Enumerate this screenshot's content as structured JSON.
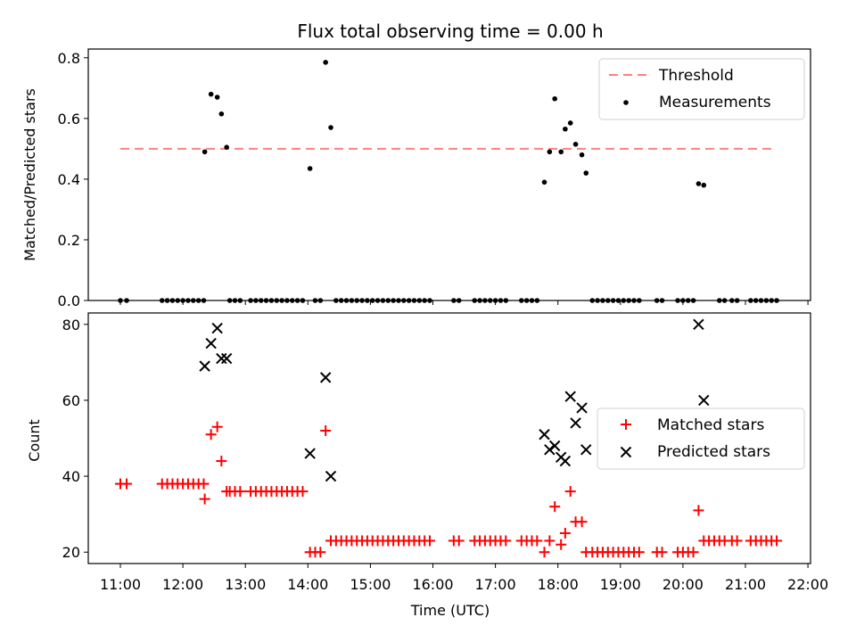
{
  "chart_data": [
    {
      "type": "scatter",
      "title": "Flux total observing time = 0.00 h",
      "ylabel": "Matched/Predicted stars",
      "xlabel": "",
      "xlim": [
        "10:50",
        "22:00"
      ],
      "ylim": [
        0,
        0.82
      ],
      "yticks": [
        "0.0",
        "0.2",
        "0.4",
        "0.6",
        "0.8"
      ],
      "legend_position": "top-right",
      "threshold": {
        "name": "Threshold",
        "value": 0.5,
        "x_range": [
          "11:00",
          "21:30"
        ],
        "color": "#ff7f7f"
      },
      "series": [
        {
          "name": "Measurements",
          "color": "#000000",
          "points": [
            [
              "11:00",
              0
            ],
            [
              "11:06",
              0
            ],
            [
              "11:40",
              0
            ],
            [
              "11:45",
              0
            ],
            [
              "11:50",
              0
            ],
            [
              "11:55",
              0
            ],
            [
              "12:00",
              0
            ],
            [
              "12:05",
              0
            ],
            [
              "12:10",
              0
            ],
            [
              "12:15",
              0
            ],
            [
              "12:20",
              0
            ],
            [
              "12:21",
              0.49
            ],
            [
              "12:27",
              0.68
            ],
            [
              "12:33",
              0.67
            ],
            [
              "12:37",
              0.615
            ],
            [
              "12:42",
              0.505
            ],
            [
              "12:45",
              0
            ],
            [
              "12:50",
              0
            ],
            [
              "12:55",
              0
            ],
            [
              "13:05",
              0
            ],
            [
              "13:10",
              0
            ],
            [
              "13:15",
              0
            ],
            [
              "13:20",
              0
            ],
            [
              "13:25",
              0
            ],
            [
              "13:30",
              0
            ],
            [
              "13:35",
              0
            ],
            [
              "13:40",
              0
            ],
            [
              "13:45",
              0
            ],
            [
              "13:50",
              0
            ],
            [
              "13:55",
              0
            ],
            [
              "14:02",
              0.435
            ],
            [
              "14:07",
              0
            ],
            [
              "14:12",
              0
            ],
            [
              "14:17",
              0.785
            ],
            [
              "14:22",
              0.57
            ],
            [
              "14:27",
              0
            ],
            [
              "14:32",
              0
            ],
            [
              "14:37",
              0
            ],
            [
              "14:42",
              0
            ],
            [
              "14:47",
              0
            ],
            [
              "14:52",
              0
            ],
            [
              "14:57",
              0
            ],
            [
              "15:02",
              0
            ],
            [
              "15:07",
              0
            ],
            [
              "15:12",
              0
            ],
            [
              "15:17",
              0
            ],
            [
              "15:22",
              0
            ],
            [
              "15:27",
              0
            ],
            [
              "15:32",
              0
            ],
            [
              "15:37",
              0
            ],
            [
              "15:42",
              0
            ],
            [
              "15:47",
              0
            ],
            [
              "15:52",
              0
            ],
            [
              "15:57",
              0
            ],
            [
              "16:20",
              0
            ],
            [
              "16:25",
              0
            ],
            [
              "16:40",
              0
            ],
            [
              "16:45",
              0
            ],
            [
              "16:50",
              0
            ],
            [
              "16:55",
              0
            ],
            [
              "17:00",
              0
            ],
            [
              "17:05",
              0
            ],
            [
              "17:10",
              0
            ],
            [
              "17:25",
              0
            ],
            [
              "17:30",
              0
            ],
            [
              "17:35",
              0
            ],
            [
              "17:40",
              0
            ],
            [
              "17:47",
              0.39
            ],
            [
              "17:52",
              0.49
            ],
            [
              "17:57",
              0.665
            ],
            [
              "18:03",
              0.49
            ],
            [
              "18:07",
              0.565
            ],
            [
              "18:12",
              0.585
            ],
            [
              "18:17",
              0.515
            ],
            [
              "18:23",
              0.48
            ],
            [
              "18:27",
              0.42
            ],
            [
              "18:33",
              0
            ],
            [
              "18:38",
              0
            ],
            [
              "18:43",
              0
            ],
            [
              "18:48",
              0
            ],
            [
              "18:53",
              0
            ],
            [
              "18:58",
              0
            ],
            [
              "19:03",
              0
            ],
            [
              "19:08",
              0
            ],
            [
              "19:13",
              0
            ],
            [
              "19:18",
              0
            ],
            [
              "19:35",
              0
            ],
            [
              "19:40",
              0
            ],
            [
              "19:55",
              0
            ],
            [
              "20:00",
              0
            ],
            [
              "20:05",
              0
            ],
            [
              "20:10",
              0
            ],
            [
              "20:15",
              0.385
            ],
            [
              "20:20",
              0.38
            ],
            [
              "20:35",
              0
            ],
            [
              "20:40",
              0
            ],
            [
              "20:47",
              0
            ],
            [
              "20:52",
              0
            ],
            [
              "21:05",
              0
            ],
            [
              "21:10",
              0
            ],
            [
              "21:15",
              0
            ],
            [
              "21:20",
              0
            ],
            [
              "21:25",
              0
            ],
            [
              "21:30",
              0
            ]
          ]
        }
      ]
    },
    {
      "type": "scatter",
      "xlabel": "Time (UTC)",
      "ylabel": "Count",
      "xticks": [
        "11:00",
        "12:00",
        "13:00",
        "14:00",
        "15:00",
        "16:00",
        "17:00",
        "18:00",
        "19:00",
        "20:00",
        "21:00",
        "22:00"
      ],
      "yticks": [
        "20",
        "40",
        "60",
        "80"
      ],
      "xlim": [
        "10:50",
        "22:00"
      ],
      "ylim": [
        17,
        83
      ],
      "legend_position": "center-right",
      "series": [
        {
          "name": "Matched stars",
          "marker": "plus",
          "color": "#ff0000",
          "points": [
            [
              "11:00",
              38
            ],
            [
              "11:06",
              38
            ],
            [
              "11:40",
              38
            ],
            [
              "11:45",
              38
            ],
            [
              "11:50",
              38
            ],
            [
              "11:55",
              38
            ],
            [
              "12:00",
              38
            ],
            [
              "12:05",
              38
            ],
            [
              "12:10",
              38
            ],
            [
              "12:15",
              38
            ],
            [
              "12:20",
              38
            ],
            [
              "12:21",
              34
            ],
            [
              "12:27",
              51
            ],
            [
              "12:33",
              53
            ],
            [
              "12:37",
              44
            ],
            [
              "12:42",
              36
            ],
            [
              "12:45",
              36
            ],
            [
              "12:50",
              36
            ],
            [
              "12:55",
              36
            ],
            [
              "13:05",
              36
            ],
            [
              "13:10",
              36
            ],
            [
              "13:15",
              36
            ],
            [
              "13:20",
              36
            ],
            [
              "13:25",
              36
            ],
            [
              "13:30",
              36
            ],
            [
              "13:35",
              36
            ],
            [
              "13:40",
              36
            ],
            [
              "13:45",
              36
            ],
            [
              "13:50",
              36
            ],
            [
              "13:55",
              36
            ],
            [
              "14:02",
              20
            ],
            [
              "14:07",
              20
            ],
            [
              "14:12",
              20
            ],
            [
              "14:17",
              52
            ],
            [
              "14:22",
              23
            ],
            [
              "14:27",
              23
            ],
            [
              "14:32",
              23
            ],
            [
              "14:37",
              23
            ],
            [
              "14:42",
              23
            ],
            [
              "14:47",
              23
            ],
            [
              "14:52",
              23
            ],
            [
              "14:57",
              23
            ],
            [
              "15:02",
              23
            ],
            [
              "15:07",
              23
            ],
            [
              "15:12",
              23
            ],
            [
              "15:17",
              23
            ],
            [
              "15:22",
              23
            ],
            [
              "15:27",
              23
            ],
            [
              "15:32",
              23
            ],
            [
              "15:37",
              23
            ],
            [
              "15:42",
              23
            ],
            [
              "15:47",
              23
            ],
            [
              "15:52",
              23
            ],
            [
              "15:57",
              23
            ],
            [
              "16:20",
              23
            ],
            [
              "16:25",
              23
            ],
            [
              "16:40",
              23
            ],
            [
              "16:45",
              23
            ],
            [
              "16:50",
              23
            ],
            [
              "16:55",
              23
            ],
            [
              "17:00",
              23
            ],
            [
              "17:05",
              23
            ],
            [
              "17:10",
              23
            ],
            [
              "17:25",
              23
            ],
            [
              "17:30",
              23
            ],
            [
              "17:35",
              23
            ],
            [
              "17:40",
              23
            ],
            [
              "17:47",
              20
            ],
            [
              "17:52",
              23
            ],
            [
              "17:57",
              32
            ],
            [
              "18:03",
              22
            ],
            [
              "18:07",
              25
            ],
            [
              "18:12",
              36
            ],
            [
              "18:17",
              28
            ],
            [
              "18:23",
              28
            ],
            [
              "18:27",
              20
            ],
            [
              "18:33",
              20
            ],
            [
              "18:38",
              20
            ],
            [
              "18:43",
              20
            ],
            [
              "18:48",
              20
            ],
            [
              "18:53",
              20
            ],
            [
              "18:58",
              20
            ],
            [
              "19:03",
              20
            ],
            [
              "19:08",
              20
            ],
            [
              "19:13",
              20
            ],
            [
              "19:18",
              20
            ],
            [
              "19:35",
              20
            ],
            [
              "19:40",
              20
            ],
            [
              "19:55",
              20
            ],
            [
              "20:00",
              20
            ],
            [
              "20:05",
              20
            ],
            [
              "20:10",
              20
            ],
            [
              "20:15",
              31
            ],
            [
              "20:20",
              23
            ],
            [
              "20:25",
              23
            ],
            [
              "20:30",
              23
            ],
            [
              "20:35",
              23
            ],
            [
              "20:40",
              23
            ],
            [
              "20:47",
              23
            ],
            [
              "20:52",
              23
            ],
            [
              "21:05",
              23
            ],
            [
              "21:10",
              23
            ],
            [
              "21:15",
              23
            ],
            [
              "21:20",
              23
            ],
            [
              "21:25",
              23
            ],
            [
              "21:30",
              23
            ]
          ]
        },
        {
          "name": "Predicted stars",
          "marker": "x",
          "color": "#000000",
          "points": [
            [
              "12:21",
              69
            ],
            [
              "12:27",
              75
            ],
            [
              "12:33",
              79
            ],
            [
              "12:37",
              71
            ],
            [
              "12:42",
              71
            ],
            [
              "14:02",
              46
            ],
            [
              "14:17",
              66
            ],
            [
              "14:22",
              40
            ],
            [
              "17:47",
              51
            ],
            [
              "17:52",
              47
            ],
            [
              "17:57",
              48
            ],
            [
              "18:03",
              45
            ],
            [
              "18:07",
              44
            ],
            [
              "18:12",
              61
            ],
            [
              "18:17",
              54
            ],
            [
              "18:23",
              58
            ],
            [
              "18:27",
              47
            ],
            [
              "20:15",
              80
            ],
            [
              "20:20",
              60
            ]
          ]
        }
      ]
    }
  ]
}
